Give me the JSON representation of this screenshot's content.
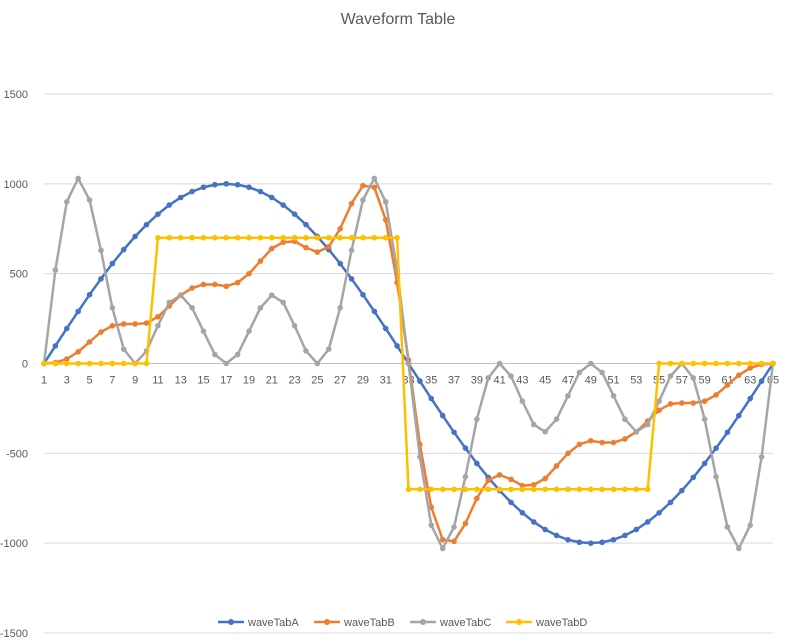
{
  "chart_data": {
    "type": "line",
    "title": "Waveform Table",
    "xlabel": "",
    "ylabel": "",
    "ylim": [
      -1500,
      1500
    ],
    "yticks": [
      -1500,
      -1000,
      -500,
      0,
      500,
      1000,
      1500
    ],
    "grid": true,
    "legend": "bottom",
    "x": [
      1,
      2,
      3,
      4,
      5,
      6,
      7,
      8,
      9,
      10,
      11,
      12,
      13,
      14,
      15,
      16,
      17,
      18,
      19,
      20,
      21,
      22,
      23,
      24,
      25,
      26,
      27,
      28,
      29,
      30,
      31,
      32,
      33,
      34,
      35,
      36,
      37,
      38,
      39,
      40,
      41,
      42,
      43,
      44,
      45,
      46,
      47,
      48,
      49,
      50,
      51,
      52,
      53,
      54,
      55,
      56,
      57,
      58,
      59,
      60,
      61,
      62,
      63,
      64,
      65
    ],
    "xtick_labels": [
      "1",
      "3",
      "5",
      "7",
      "9",
      "11",
      "13",
      "15",
      "17",
      "19",
      "21",
      "23",
      "25",
      "27",
      "29",
      "31",
      "33",
      "35",
      "37",
      "39",
      "41",
      "43",
      "45",
      "47",
      "49",
      "51",
      "53",
      "55",
      "57",
      "59",
      "61",
      "63",
      "65"
    ],
    "series": [
      {
        "name": "waveTabA",
        "color": "#4472C4",
        "values": [
          0,
          98,
          195,
          290,
          383,
          471,
          556,
          634,
          707,
          773,
          831,
          882,
          924,
          957,
          981,
          995,
          1000,
          995,
          981,
          957,
          924,
          882,
          831,
          773,
          707,
          634,
          556,
          471,
          383,
          290,
          195,
          98,
          0,
          -98,
          -195,
          -290,
          -383,
          -471,
          -556,
          -634,
          -707,
          -773,
          -831,
          -882,
          -924,
          -957,
          -981,
          -995,
          -1000,
          -995,
          -981,
          -957,
          -924,
          -882,
          -831,
          -773,
          -707,
          -634,
          -556,
          -471,
          -383,
          -290,
          -195,
          -98,
          0
        ]
      },
      {
        "name": "waveTabB",
        "color": "#ED7D31",
        "values": [
          0,
          5,
          25,
          65,
          120,
          175,
          210,
          220,
          220,
          225,
          260,
          320,
          380,
          420,
          440,
          440,
          430,
          450,
          500,
          570,
          640,
          675,
          680,
          645,
          620,
          650,
          750,
          890,
          990,
          980,
          800,
          450,
          20,
          -450,
          -800,
          -980,
          -990,
          -890,
          -750,
          -650,
          -620,
          -645,
          -680,
          -675,
          -640,
          -570,
          -500,
          -450,
          -430,
          -440,
          -440,
          -420,
          -380,
          -320,
          -260,
          -225,
          -220,
          -220,
          -210,
          -175,
          -120,
          -65,
          -25,
          -5,
          0
        ]
      },
      {
        "name": "waveTabC",
        "color": "#A5A5A5",
        "values": [
          0,
          520,
          900,
          1030,
          910,
          630,
          310,
          80,
          0,
          70,
          210,
          340,
          380,
          310,
          180,
          50,
          0,
          50,
          180,
          310,
          380,
          340,
          210,
          70,
          0,
          80,
          310,
          630,
          910,
          1030,
          900,
          520,
          0,
          -520,
          -900,
          -1030,
          -910,
          -630,
          -310,
          -80,
          0,
          -70,
          -210,
          -340,
          -380,
          -310,
          -180,
          -50,
          0,
          -50,
          -180,
          -310,
          -380,
          -340,
          -210,
          -70,
          0,
          -80,
          -310,
          -630,
          -910,
          -1030,
          -900,
          -520,
          0
        ]
      },
      {
        "name": "waveTabD",
        "color": "#FFC000",
        "values": [
          0,
          0,
          0,
          0,
          0,
          0,
          0,
          0,
          0,
          0,
          700,
          700,
          700,
          700,
          700,
          700,
          700,
          700,
          700,
          700,
          700,
          700,
          700,
          700,
          700,
          700,
          700,
          700,
          700,
          700,
          700,
          700,
          -700,
          -700,
          -700,
          -700,
          -700,
          -700,
          -700,
          -700,
          -700,
          -700,
          -700,
          -700,
          -700,
          -700,
          -700,
          -700,
          -700,
          -700,
          -700,
          -700,
          -700,
          -700,
          0,
          0,
          0,
          0,
          0,
          0,
          0,
          0,
          0,
          0,
          0
        ]
      }
    ]
  }
}
